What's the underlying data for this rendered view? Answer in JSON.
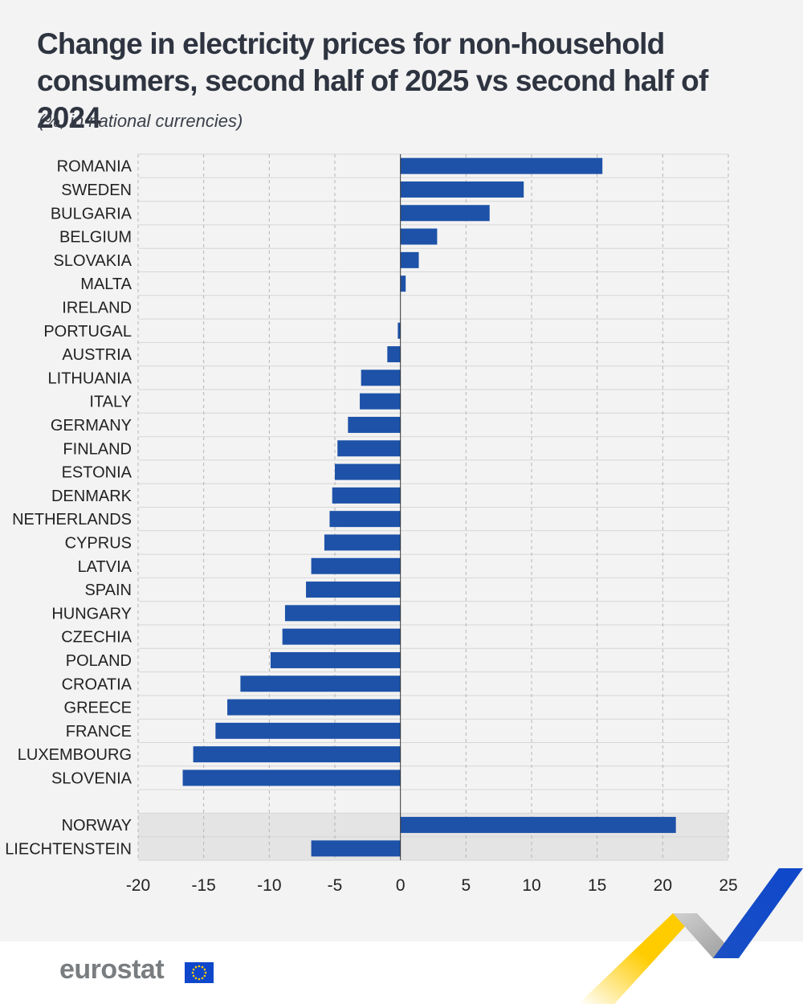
{
  "title": "Change in electricity prices for non-household consumers, second half of 2025 vs second half of 2024",
  "subtitle": "(%, in national currencies)",
  "brand": {
    "name": "eurostat",
    "bar_color": "#1d52a8",
    "accent_blue": "#0e47cb",
    "accent_yellow": "#ffcc00"
  },
  "chart_data": {
    "type": "bar",
    "orientation": "horizontal",
    "categories": [
      "ROMANIA",
      "SWEDEN",
      "BULGARIA",
      "BELGIUM",
      "SLOVAKIA",
      "MALTA",
      "IRELAND",
      "PORTUGAL",
      "AUSTRIA",
      "LITHUANIA",
      "ITALY",
      "GERMANY",
      "FINLAND",
      "ESTONIA",
      "DENMARK",
      "NETHERLANDS",
      "CYPRUS",
      "LATVIA",
      "SPAIN",
      "HUNGARY",
      "CZECHIA",
      "POLAND",
      "CROATIA",
      "GREECE",
      "FRANCE",
      "LUXEMBOURG",
      "SLOVENIA"
    ],
    "values": [
      15.4,
      9.4,
      6.8,
      2.8,
      1.4,
      0.4,
      0.0,
      -0.2,
      -1.0,
      -3.0,
      -3.1,
      -4.0,
      -4.8,
      -5.0,
      -5.2,
      -5.4,
      -5.8,
      -6.8,
      -7.2,
      -8.8,
      -9.0,
      -9.9,
      -12.2,
      -13.2,
      -14.1,
      -15.8,
      -16.6
    ],
    "extra_group": {
      "categories": [
        "NORWAY",
        "LIECHTENSTEIN"
      ],
      "values": [
        21.0,
        -6.8
      ]
    },
    "xlim": [
      -20,
      25
    ],
    "xticks": [
      -20,
      -15,
      -10,
      -5,
      0,
      5,
      10,
      15,
      20,
      25
    ],
    "xticklabels": [
      "-20",
      "-15",
      "-10",
      "-5",
      "0",
      "5",
      "10",
      "15",
      "20",
      "25"
    ],
    "grid": "vertical dashed"
  }
}
